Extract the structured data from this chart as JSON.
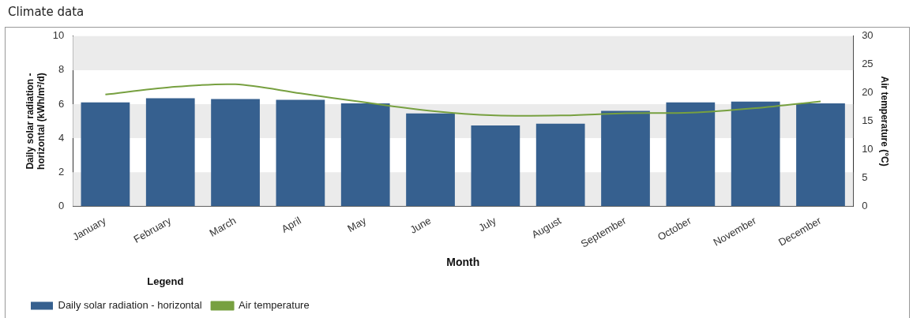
{
  "chart_data": {
    "type": "bar",
    "title": "Climate data",
    "xlabel": "Month",
    "ylabel": "Daily solar radiation - horizontal (kWh/m²/d)",
    "y2label": "Air temperature (°C)",
    "legend_title": "Legend",
    "categories": [
      "January",
      "February",
      "March",
      "April",
      "May",
      "June",
      "July",
      "August",
      "September",
      "October",
      "November",
      "December"
    ],
    "series": [
      {
        "name": "Daily solar radiation - horizontal",
        "color": "#36608f",
        "values": [
          6.1,
          6.35,
          6.3,
          6.25,
          6.05,
          5.45,
          4.75,
          4.85,
          5.6,
          6.1,
          6.15,
          6.05
        ]
      },
      {
        "name": "Air temperature",
        "type": "line",
        "axis": "y2",
        "color": "#77a040",
        "values": [
          19.7,
          21,
          21.5,
          19.9,
          18.3,
          16.8,
          16,
          16,
          16.4,
          16.5,
          17.3,
          18.5
        ]
      }
    ],
    "ylim": [
      0,
      10
    ],
    "yticks": [
      0,
      2,
      4,
      6,
      8,
      10
    ],
    "y2lim": [
      0,
      30
    ],
    "y2ticks": [
      0,
      5,
      10,
      15,
      20,
      25,
      30
    ],
    "bands": [
      {
        "axis": "y",
        "from": 0,
        "to": 2,
        "color": "#ebebeb"
      },
      {
        "axis": "y",
        "from": 4,
        "to": 6,
        "color": "#ebebeb"
      },
      {
        "axis": "y",
        "from": 8,
        "to": 10,
        "color": "#ebebeb"
      }
    ],
    "legend": "bottom",
    "marker": "none"
  }
}
